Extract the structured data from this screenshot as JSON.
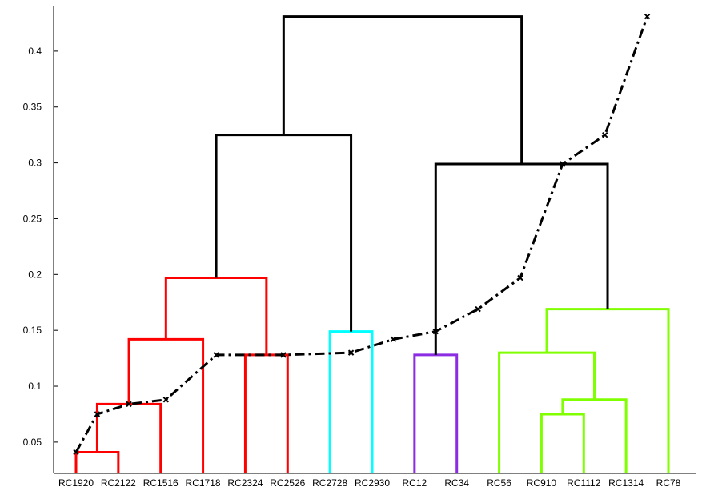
{
  "chart_data": {
    "type": "dendrogram",
    "title": "",
    "xlabel": "",
    "ylabel": "",
    "ylim": [
      0.022,
      0.44
    ],
    "yticks": [
      0.05,
      0.1,
      0.15,
      0.2,
      0.25,
      0.3,
      0.35,
      0.4
    ],
    "ytick_labels": [
      "0.05",
      "0.1",
      "0.15",
      "0.2",
      "0.25",
      "0.3",
      "0.35",
      "0.4"
    ],
    "leaves": [
      "RC1920",
      "RC2122",
      "RC1516",
      "RC1718",
      "RC2324",
      "RC2526",
      "RC2728",
      "RC2930",
      "RC12",
      "RC34",
      "RC56",
      "RC910",
      "RC1112",
      "RC1314",
      "RC78"
    ],
    "links": [
      {
        "x": [
          1,
          1,
          2,
          2
        ],
        "y": [
          0.022,
          0.041,
          0.041,
          0.022
        ],
        "color": "#ff0000"
      },
      {
        "x": [
          1.5,
          1.5,
          3,
          3
        ],
        "y": [
          0.041,
          0.084,
          0.084,
          0.022
        ],
        "color": "#ff0000"
      },
      {
        "x": [
          2.25,
          2.25,
          4,
          4
        ],
        "y": [
          0.084,
          0.142,
          0.142,
          0.022
        ],
        "color": "#ff0000"
      },
      {
        "x": [
          5,
          5,
          6,
          6
        ],
        "y": [
          0.022,
          0.128,
          0.128,
          0.022
        ],
        "color": "#ff0000"
      },
      {
        "x": [
          3.125,
          3.125,
          5.5,
          5.5
        ],
        "y": [
          0.142,
          0.197,
          0.197,
          0.128
        ],
        "color": "#ff0000"
      },
      {
        "x": [
          7,
          7,
          8,
          8
        ],
        "y": [
          0.022,
          0.149,
          0.149,
          0.022
        ],
        "color": "#00ffff"
      },
      {
        "x": [
          4.3125,
          4.3125,
          7.5,
          7.5
        ],
        "y": [
          0.197,
          0.325,
          0.325,
          0.149
        ],
        "color": "#000000"
      },
      {
        "x": [
          9,
          9,
          10,
          10
        ],
        "y": [
          0.022,
          0.128,
          0.128,
          0.022
        ],
        "color": "#8b2be2"
      },
      {
        "x": [
          12,
          12,
          13,
          13
        ],
        "y": [
          0.022,
          0.075,
          0.075,
          0.022
        ],
        "color": "#80ff00"
      },
      {
        "x": [
          12.5,
          12.5,
          14,
          14
        ],
        "y": [
          0.075,
          0.088,
          0.088,
          0.022
        ],
        "color": "#80ff00"
      },
      {
        "x": [
          11,
          11,
          13.25,
          13.25
        ],
        "y": [
          0.022,
          0.13,
          0.13,
          0.088
        ],
        "color": "#80ff00"
      },
      {
        "x": [
          12.125,
          12.125,
          15,
          15
        ],
        "y": [
          0.13,
          0.169,
          0.169,
          0.022
        ],
        "color": "#80ff00"
      },
      {
        "x": [
          9.5,
          9.5,
          13.5625,
          13.5625
        ],
        "y": [
          0.128,
          0.299,
          0.299,
          0.169
        ],
        "color": "#000000"
      },
      {
        "x": [
          5.90625,
          5.90625,
          11.53125,
          11.53125
        ],
        "y": [
          0.325,
          0.431,
          0.431,
          0.299
        ],
        "color": "#000000"
      }
    ],
    "overlay_series": {
      "style": "dash-dot",
      "marker": "x",
      "color": "#000000",
      "x": [
        1,
        1.5,
        2.25,
        3.125,
        4.3125,
        5.9,
        7.5,
        8.5,
        9.5,
        10.5,
        11.5,
        12.5,
        13.5,
        14.5
      ],
      "y": [
        0.041,
        0.075,
        0.084,
        0.088,
        0.128,
        0.128,
        0.13,
        0.142,
        0.149,
        0.169,
        0.197,
        0.299,
        0.325,
        0.431
      ]
    }
  }
}
